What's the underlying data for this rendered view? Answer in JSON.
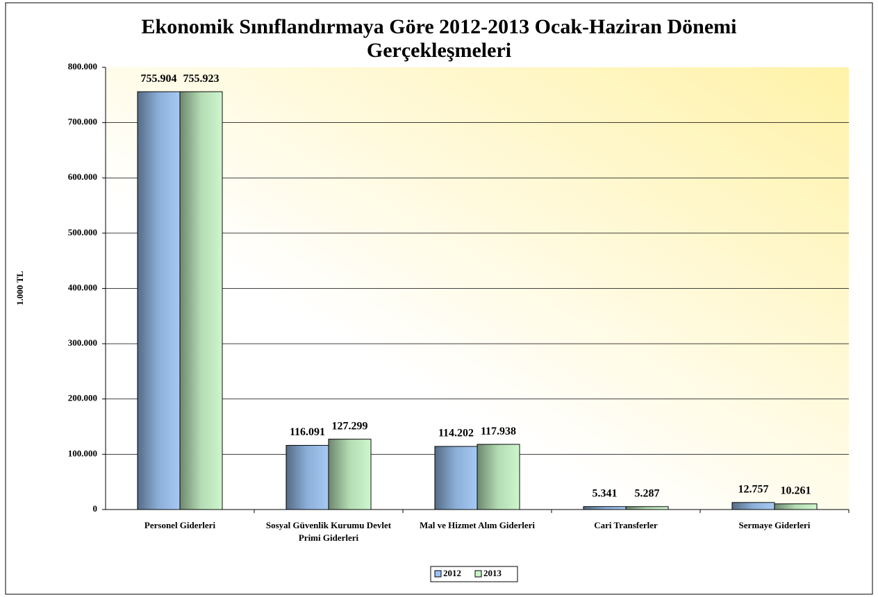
{
  "chart_data": {
    "type": "bar",
    "title": "Ekonomik Sınıflandırmaya Göre 2012-2013 Ocak-Haziran Dönemi Gerçekleşmeleri",
    "y_label": "1.000 TL",
    "categories": [
      "Personel Giderleri",
      "Sosyal Güvenlik Kurumu Devlet Primi Giderleri",
      "Mal ve Hizmet Alım Giderleri",
      "Cari Transferler",
      "Sermaye Giderleri"
    ],
    "series": [
      {
        "name": "2012",
        "color": "#9cc3f2",
        "values": [
          755904,
          116091,
          114202,
          5341,
          12757
        ],
        "value_labels": [
          "755.904",
          "116.091",
          "114.202",
          "5.341",
          "12.757"
        ]
      },
      {
        "name": "2013",
        "color": "#c8f5c8",
        "values": [
          755923,
          127299,
          117938,
          5287,
          10261
        ],
        "value_labels": [
          "755.923",
          "127.299",
          "117.938",
          "5.287",
          "10.261"
        ]
      }
    ],
    "ylim": [
      0,
      800000
    ],
    "yticks": [
      0,
      {
        "value": 100000,
        "label": "100.000"
      },
      {
        "value": 200000,
        "label": "200.000"
      },
      {
        "value": 300000,
        "label": "300.000"
      },
      {
        "value": 400000,
        "label": "400.000"
      },
      {
        "value": 500000,
        "label": "500.000"
      },
      {
        "value": 600000,
        "label": "600.000"
      },
      {
        "value": 700000,
        "label": "700.000"
      },
      {
        "value": 800000,
        "label": "800.000"
      }
    ],
    "grid": true,
    "legend": "bottom"
  }
}
